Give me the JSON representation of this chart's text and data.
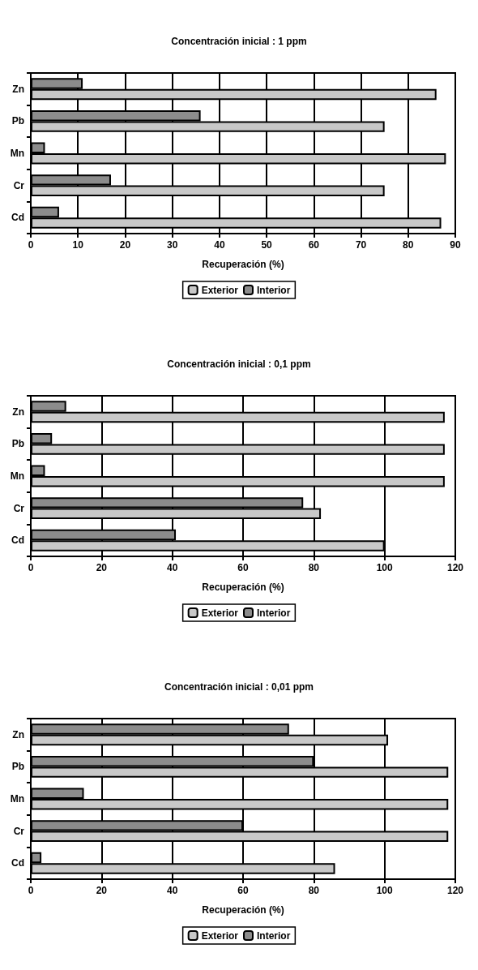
{
  "chart_data": [
    {
      "type": "bar",
      "orientation": "horizontal",
      "title": "Concentración inicial : 1 ppm",
      "xlabel": "Recuperación (%)",
      "categories": [
        "Zn",
        "Pb",
        "Mn",
        "Cr",
        "Cd"
      ],
      "series": [
        {
          "name": "Exterior",
          "color": "#c8c8c8",
          "values": [
            86,
            75,
            88,
            75,
            87
          ]
        },
        {
          "name": "Interior",
          "color": "#8c8c8c",
          "values": [
            11,
            36,
            3,
            17,
            6
          ]
        }
      ],
      "xlim": [
        0,
        90
      ],
      "xticks": [
        0,
        10,
        20,
        30,
        40,
        50,
        60,
        70,
        80,
        90
      ],
      "grid": "x",
      "legend": "bottom"
    },
    {
      "type": "bar",
      "orientation": "horizontal",
      "title": "Concentración inicial : 0,1 ppm",
      "xlabel": "Recuperación (%)",
      "categories": [
        "Zn",
        "Pb",
        "Mn",
        "Cr",
        "Cd"
      ],
      "series": [
        {
          "name": "Exterior",
          "color": "#c8c8c8",
          "values": [
            117,
            117,
            117,
            82,
            100
          ]
        },
        {
          "name": "Interior",
          "color": "#8c8c8c",
          "values": [
            10,
            6,
            4,
            77,
            41
          ]
        }
      ],
      "xlim": [
        0,
        120
      ],
      "xticks": [
        0,
        20,
        40,
        60,
        80,
        100,
        120
      ],
      "grid": "x",
      "legend": "bottom"
    },
    {
      "type": "bar",
      "orientation": "horizontal",
      "title": "Concentración inicial : 0,01 ppm",
      "xlabel": "Recuperación (%)",
      "categories": [
        "Zn",
        "Pb",
        "Mn",
        "Cr",
        "Cd"
      ],
      "series": [
        {
          "name": "Exterior",
          "color": "#c8c8c8",
          "values": [
            101,
            118,
            118,
            118,
            86
          ]
        },
        {
          "name": "Interior",
          "color": "#8c8c8c",
          "values": [
            73,
            80,
            15,
            60,
            3
          ]
        }
      ],
      "xlim": [
        0,
        120
      ],
      "xticks": [
        0,
        20,
        40,
        60,
        80,
        100,
        120
      ],
      "grid": "x",
      "legend": "bottom"
    }
  ]
}
